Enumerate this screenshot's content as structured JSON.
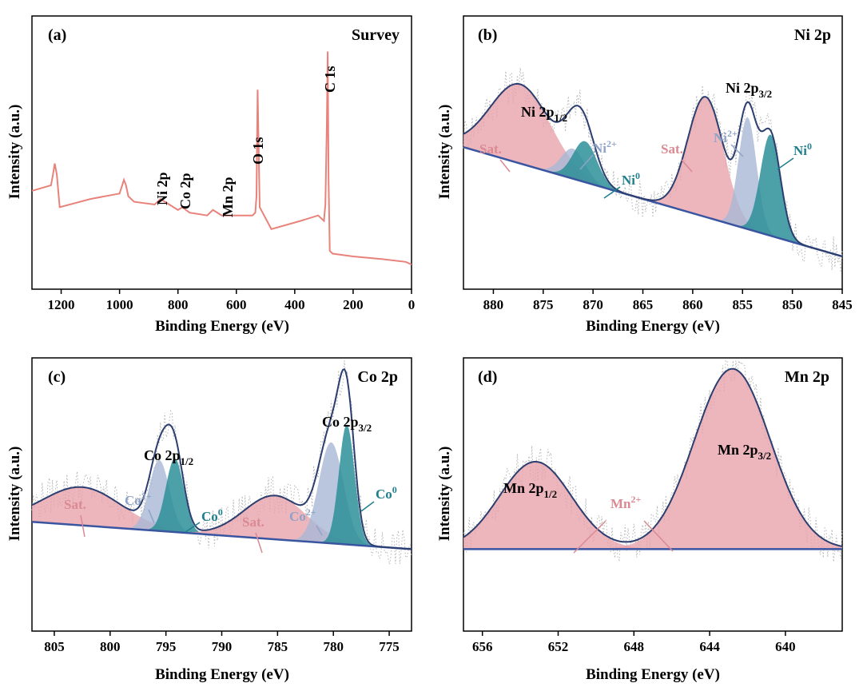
{
  "colors": {
    "survey": "#e8827a",
    "envelope": "#2c3e6f",
    "sat_fill": "#e8a3ab",
    "sat_text": "#d98a93",
    "m2_fill": "#a7b8d6",
    "m2_text": "#8fa3c8",
    "m0_fill": "#2d8f98",
    "m0_text": "#1f7f8a",
    "background": "#3a55a0",
    "raw": "#b5b5b5"
  },
  "chart_data": [
    {
      "panel_label": "(a)",
      "title": "Survey",
      "type": "line",
      "xlabel": "Binding Energy (eV)",
      "ylabel": "Intensity (a.u.)",
      "xlim": [
        1300,
        0
      ],
      "xticks": [
        "1200",
        "1000",
        "800",
        "600",
        "400",
        "200",
        "0"
      ],
      "xtick_values": [
        1200,
        1000,
        800,
        600,
        400,
        200,
        0
      ],
      "ylim": [
        0,
        100
      ],
      "series": [
        {
          "name": "survey",
          "x": [
            1300,
            1235,
            1228,
            1222,
            1215,
            1205,
            1100,
            1000,
            985,
            978,
            970,
            950,
            880,
            860,
            800,
            785,
            760,
            700,
            680,
            650,
            560,
            545,
            535,
            531,
            527,
            520,
            480,
            380,
            320,
            300,
            295,
            290,
            287,
            284,
            280,
            270,
            200,
            100,
            20,
            0
          ],
          "y": [
            36,
            38,
            42,
            46,
            42,
            30,
            33,
            35,
            40,
            38,
            34,
            32,
            31,
            33,
            29,
            30,
            28,
            27,
            29,
            27,
            27,
            27,
            28,
            34,
            73,
            30,
            22,
            25,
            27,
            25,
            31,
            60,
            87,
            40,
            14,
            13,
            12,
            11,
            10,
            9
          ]
        }
      ],
      "annotations": [
        {
          "text": "Ni 2p",
          "x": 858
        },
        {
          "text": "Co 2p",
          "x": 785
        },
        {
          "text": "Mn 2p",
          "x": 645
        },
        {
          "text": "O 1s",
          "x": 531
        },
        {
          "text": "C 1s",
          "x": 285
        }
      ]
    },
    {
      "panel_label": "(b)",
      "title": "Ni 2p",
      "type": "area",
      "xlabel": "Binding Energy (eV)",
      "ylabel": "Intensity (a.u.)",
      "xlim": [
        883,
        845
      ],
      "xticks": [
        "880",
        "875",
        "870",
        "865",
        "860",
        "855",
        "850",
        "845"
      ],
      "xtick_values": [
        880,
        875,
        870,
        865,
        860,
        855,
        850,
        845
      ],
      "ylim": [
        0,
        100
      ],
      "background": {
        "x": [
          883,
          845
        ],
        "y": [
          52,
          12
        ]
      },
      "series": [
        {
          "name": "Sat.",
          "center": 877.3,
          "height": 29,
          "sigma": 3.0
        },
        {
          "name": "Ni2+",
          "center": 872.0,
          "height": 11,
          "sigma": 1.2
        },
        {
          "name": "Ni0",
          "center": 870.8,
          "height": 15,
          "sigma": 1.2
        },
        {
          "name": "Sat.",
          "center": 858.7,
          "height": 44,
          "sigma": 1.8
        },
        {
          "name": "Ni2+",
          "center": 854.5,
          "height": 41,
          "sigma": 0.9
        },
        {
          "name": "Ni0",
          "center": 852.2,
          "height": 37,
          "sigma": 1.0
        }
      ],
      "peak_labels": {
        "left": "Ni 2p",
        "left_sub": "1/2",
        "right": "Ni 2p",
        "right_sub": "3/2"
      },
      "component_labels": [
        "Sat.",
        "Ni",
        "Ni",
        "Sat.",
        "Ni",
        "Ni"
      ],
      "component_sups": [
        "",
        "2+",
        "0",
        "",
        "2+",
        "0"
      ]
    },
    {
      "panel_label": "(c)",
      "title": "Co 2p",
      "type": "area",
      "xlabel": "Binding Energy (eV)",
      "ylabel": "Intensity (a.u.)",
      "xlim": [
        807,
        773
      ],
      "xticks": [
        "805",
        "800",
        "795",
        "790",
        "785",
        "780",
        "775"
      ],
      "xtick_values": [
        805,
        800,
        795,
        790,
        785,
        780,
        775
      ],
      "ylim": [
        0,
        100
      ],
      "background": {
        "x": [
          807,
          773
        ],
        "y": [
          40,
          30
        ]
      },
      "series": [
        {
          "name": "Sat.",
          "center": 802.5,
          "height": 14,
          "sigma": 3.5
        },
        {
          "name": "Co2+",
          "center": 795.6,
          "height": 26,
          "sigma": 0.9
        },
        {
          "name": "Co0",
          "center": 794.2,
          "height": 27,
          "sigma": 0.8
        },
        {
          "name": "Sat.",
          "center": 785.2,
          "height": 16,
          "sigma": 2.8
        },
        {
          "name": "Co2+",
          "center": 780.2,
          "height": 37,
          "sigma": 1.1
        },
        {
          "name": "Co0",
          "center": 778.8,
          "height": 44,
          "sigma": 0.7
        }
      ],
      "peak_labels": {
        "left": "Co 2p",
        "left_sub": "1/2",
        "right": "Co 2p",
        "right_sub": "3/2"
      },
      "component_labels": [
        "Sat.",
        "Co",
        "Co",
        "Sat.",
        "Co",
        "Co"
      ],
      "component_sups": [
        "",
        "2+",
        "0",
        "",
        "2+",
        "0"
      ]
    },
    {
      "panel_label": "(d)",
      "title": "Mn 2p",
      "type": "area",
      "xlabel": "Binding Energy (eV)",
      "ylabel": "Intensity (a.u.)",
      "xlim": [
        657,
        637
      ],
      "xticks": [
        "656",
        "652",
        "648",
        "644",
        "640"
      ],
      "xtick_values": [
        656,
        652,
        648,
        644,
        640
      ],
      "ylim": [
        0,
        100
      ],
      "background": {
        "x": [
          657,
          637
        ],
        "y": [
          30,
          30
        ]
      },
      "series": [
        {
          "name": "Mn2+",
          "center": 653.2,
          "height": 32,
          "sigma": 1.9
        },
        {
          "name": "Mn2+",
          "center": 642.8,
          "height": 66,
          "sigma": 2.0
        }
      ],
      "peak_labels": {
        "left": "Mn 2p",
        "left_sub": "1/2",
        "right": "Mn 2p",
        "right_sub": "3/2"
      },
      "component_labels": [
        "Mn"
      ],
      "component_sups": [
        "2+"
      ]
    }
  ]
}
